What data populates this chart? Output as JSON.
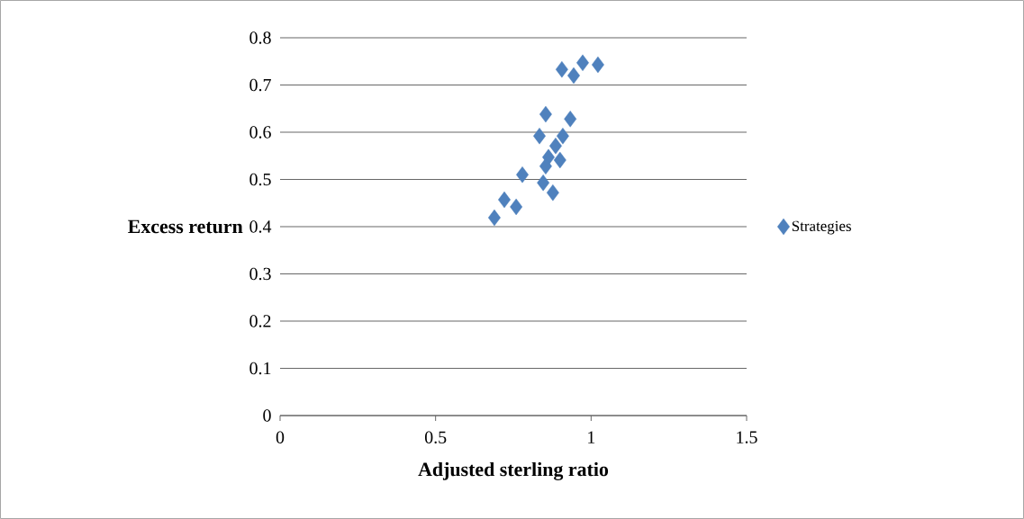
{
  "chart_data": {
    "type": "scatter",
    "xlabel": "Adjusted sterling ratio",
    "ylabel": "Excess return",
    "series": [
      {
        "name": "Strategies",
        "color": "#4f81bd",
        "x": [
          0.689,
          0.721,
          0.759,
          0.779,
          0.834,
          0.854,
          0.933,
          0.909,
          0.886,
          0.863,
          0.9,
          0.854,
          0.846,
          0.877,
          0.906,
          0.944,
          0.973,
          1.022
        ],
        "values": [
          0.419,
          0.457,
          0.442,
          0.51,
          0.592,
          0.638,
          0.628,
          0.592,
          0.571,
          0.547,
          0.541,
          0.528,
          0.493,
          0.472,
          0.733,
          0.72,
          0.747,
          0.743
        ]
      }
    ],
    "xlim": [
      0,
      1.5
    ],
    "xticks": [
      0,
      0.5,
      1,
      1.5
    ],
    "ylim": [
      0,
      0.8
    ],
    "yticks": [
      0,
      0.1,
      0.2,
      0.3,
      0.4,
      0.5,
      0.6,
      0.7,
      0.8
    ],
    "grid": "y",
    "legend": "right",
    "marker": "diamond"
  }
}
